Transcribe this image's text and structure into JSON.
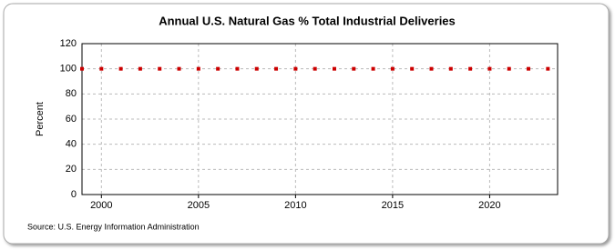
{
  "chart_data": {
    "type": "scatter",
    "title": "Annual U.S. Natural Gas % Total Industrial Deliveries",
    "y_label": "Percent",
    "source": "Source: U.S. Energy Information Administration",
    "x": [
      1999,
      2000,
      2001,
      2002,
      2003,
      2004,
      2005,
      2006,
      2007,
      2008,
      2009,
      2010,
      2011,
      2012,
      2013,
      2014,
      2015,
      2016,
      2017,
      2018,
      2019,
      2020,
      2021,
      2022,
      2023
    ],
    "values": [
      100,
      100,
      100,
      100,
      100,
      100,
      100,
      100,
      100,
      100,
      100,
      100,
      100,
      100,
      100,
      100,
      100,
      100,
      100,
      100,
      100,
      100,
      100,
      100,
      100
    ],
    "color": "#cc0000",
    "xlim": [
      1999,
      2023.5
    ],
    "xticks": [
      2000,
      2005,
      2010,
      2015,
      2020
    ],
    "ylim": [
      0,
      120
    ],
    "yticks": [
      0,
      20,
      40,
      60,
      80,
      100,
      120
    ],
    "grid": true
  }
}
